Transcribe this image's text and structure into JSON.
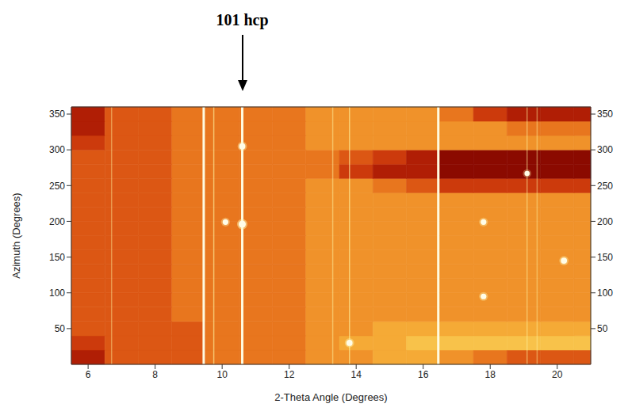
{
  "chart_data": {
    "type": "heatmap",
    "x_label": "2-Theta Angle (Degrees)",
    "y_label": "Azimuth (Degrees)",
    "xlim": [
      5.5,
      21
    ],
    "xticks": [
      6,
      8,
      10,
      12,
      14,
      16,
      18,
      20
    ],
    "ylim": [
      0,
      360
    ],
    "yticks": [
      50,
      100,
      150,
      200,
      250,
      300,
      350
    ],
    "x_edges": [
      5.5,
      6.5,
      7.5,
      8.5,
      9.5,
      10.5,
      11.5,
      12.5,
      13.5,
      14.5,
      15.5,
      16.5,
      17.5,
      18.5,
      19.5,
      20.5,
      21
    ],
    "y_edges": [
      0,
      20,
      40,
      60,
      80,
      100,
      120,
      140,
      160,
      180,
      200,
      220,
      240,
      260,
      280,
      300,
      320,
      340,
      360
    ],
    "cells": [
      [
        2,
        4,
        4,
        4,
        5,
        5,
        5,
        6,
        6,
        7,
        7,
        6,
        5,
        4,
        4,
        4
      ],
      [
        3,
        4,
        4,
        4,
        5,
        5,
        5,
        6,
        7,
        7,
        8,
        8,
        8,
        8,
        8,
        8
      ],
      [
        4,
        4,
        4,
        4,
        5,
        5,
        5,
        6,
        6,
        7,
        7,
        7,
        7,
        7,
        7,
        7
      ],
      [
        4,
        4,
        4,
        5,
        5,
        5,
        5,
        6,
        6,
        6,
        6,
        6,
        6,
        6,
        6,
        6
      ],
      [
        4,
        4,
        4,
        5,
        5,
        5,
        5,
        6,
        6,
        6,
        6,
        6,
        6,
        6,
        6,
        6
      ],
      [
        4,
        4,
        4,
        5,
        5,
        5,
        5,
        6,
        6,
        6,
        6,
        6,
        6,
        6,
        6,
        6
      ],
      [
        4,
        4,
        4,
        5,
        5,
        5,
        5,
        6,
        6,
        6,
        6,
        6,
        6,
        6,
        6,
        6
      ],
      [
        4,
        4,
        4,
        5,
        5,
        5,
        5,
        6,
        6,
        6,
        6,
        6,
        6,
        6,
        6,
        6
      ],
      [
        4,
        4,
        4,
        5,
        5,
        5,
        5,
        6,
        6,
        6,
        6,
        6,
        6,
        6,
        6,
        6
      ],
      [
        4,
        4,
        4,
        5,
        5,
        5,
        5,
        6,
        6,
        6,
        6,
        6,
        6,
        6,
        6,
        6
      ],
      [
        4,
        4,
        4,
        5,
        5,
        5,
        5,
        6,
        6,
        6,
        6,
        6,
        6,
        6,
        6,
        6
      ],
      [
        4,
        4,
        4,
        5,
        5,
        5,
        5,
        6,
        6,
        6,
        6,
        6,
        6,
        6,
        6,
        6
      ],
      [
        4,
        4,
        4,
        5,
        5,
        5,
        5,
        6,
        6,
        5,
        4,
        3,
        3,
        3,
        3,
        3
      ],
      [
        4,
        4,
        4,
        5,
        5,
        5,
        5,
        5,
        3,
        2,
        2,
        1,
        1,
        1,
        1,
        1
      ],
      [
        4,
        4,
        4,
        5,
        5,
        5,
        5,
        5,
        4,
        3,
        2,
        1,
        1,
        1,
        1,
        1
      ],
      [
        3,
        4,
        4,
        5,
        5,
        5,
        5,
        6,
        6,
        6,
        6,
        6,
        6,
        6,
        6,
        6
      ],
      [
        2,
        4,
        4,
        5,
        5,
        5,
        5,
        6,
        6,
        6,
        6,
        6,
        6,
        5,
        5,
        5
      ],
      [
        2,
        4,
        4,
        5,
        5,
        5,
        5,
        6,
        6,
        6,
        6,
        5,
        3,
        2,
        2,
        2
      ]
    ],
    "rings": [
      {
        "x": 6.7,
        "intensity": 3
      },
      {
        "x": 9.45,
        "intensity": 10
      },
      {
        "x": 9.75,
        "intensity": 6
      },
      {
        "x": 10.6,
        "intensity": 10
      },
      {
        "x": 13.3,
        "intensity": 4
      },
      {
        "x": 13.8,
        "intensity": 6
      },
      {
        "x": 16.45,
        "intensity": 8
      },
      {
        "x": 19.1,
        "intensity": 4
      },
      {
        "x": 19.4,
        "intensity": 3
      }
    ],
    "spots": [
      {
        "x": 10.6,
        "y": 196,
        "intensity": 10
      },
      {
        "x": 10.1,
        "y": 199,
        "intensity": 7
      },
      {
        "x": 10.6,
        "y": 305,
        "intensity": 8
      },
      {
        "x": 13.8,
        "y": 30,
        "intensity": 8
      },
      {
        "x": 17.8,
        "y": 199,
        "intensity": 7
      },
      {
        "x": 17.8,
        "y": 95,
        "intensity": 7
      },
      {
        "x": 20.2,
        "y": 145,
        "intensity": 8
      },
      {
        "x": 19.1,
        "y": 267,
        "intensity": 6
      }
    ],
    "annotations": [
      {
        "text": "101 hcp",
        "x": 10.6
      }
    ]
  }
}
